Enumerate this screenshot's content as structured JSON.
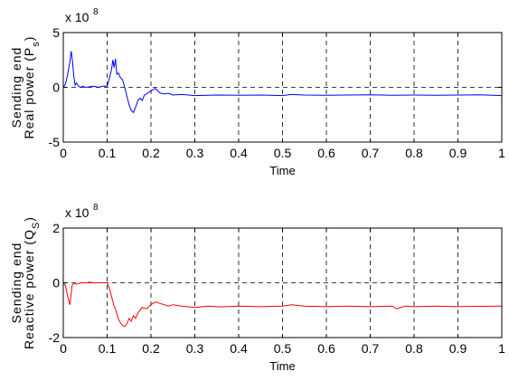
{
  "chart_data": [
    {
      "type": "line",
      "exponent_label": "x 10",
      "exponent_power": "8",
      "ylabel_line1": "Sending end",
      "ylabel_line2": "Real power (P",
      "ylabel_sub": "s",
      "ylabel_close": ")",
      "xlabel": "Time",
      "xlim": [
        0,
        1
      ],
      "ylim": [
        -5,
        5
      ],
      "x_ticks": [
        0,
        0.1,
        0.2,
        0.3,
        0.4,
        0.5,
        0.6,
        0.7,
        0.8,
        0.9,
        1
      ],
      "x_tick_labels": [
        "0",
        "0.1",
        "0.2",
        "0.3",
        "0.4",
        "0.5",
        "0.6",
        "0.7",
        "0.8",
        "0.9",
        "1"
      ],
      "y_ticks": [
        -5,
        0,
        5
      ],
      "y_tick_labels": [
        "-5",
        "0",
        "5"
      ],
      "grid": true,
      "series": [
        {
          "color": "#0000ff",
          "x": [
            0,
            0.005,
            0.01,
            0.015,
            0.018,
            0.021,
            0.024,
            0.027,
            0.03,
            0.035,
            0.04,
            0.045,
            0.05,
            0.06,
            0.07,
            0.08,
            0.09,
            0.1,
            0.105,
            0.11,
            0.113,
            0.116,
            0.119,
            0.122,
            0.126,
            0.13,
            0.135,
            0.14,
            0.145,
            0.15,
            0.155,
            0.16,
            0.165,
            0.17,
            0.175,
            0.18,
            0.185,
            0.19,
            0.2,
            0.21,
            0.22,
            0.23,
            0.24,
            0.25,
            0.27,
            0.3,
            0.35,
            0.4,
            0.45,
            0.5,
            0.52,
            0.55,
            0.6,
            0.65,
            0.7,
            0.75,
            0.8,
            0.85,
            0.9,
            0.95,
            1.0
          ],
          "y": [
            0,
            0.3,
            1.2,
            2.3,
            3.3,
            2.4,
            1.0,
            0.2,
            0.4,
            0.1,
            0.0,
            0.1,
            0.0,
            0.05,
            0.1,
            0.0,
            0.1,
            0.1,
            0.8,
            1.6,
            2.5,
            1.8,
            2.6,
            1.2,
            1.3,
            0.9,
            0.7,
            0.0,
            -0.8,
            -1.6,
            -2.1,
            -2.3,
            -1.8,
            -1.2,
            -1.0,
            -1.2,
            -0.7,
            -0.6,
            -0.3,
            -0.1,
            -0.5,
            -0.6,
            -0.55,
            -0.7,
            -0.65,
            -0.75,
            -0.7,
            -0.72,
            -0.7,
            -0.75,
            -0.65,
            -0.7,
            -0.72,
            -0.7,
            -0.68,
            -0.72,
            -0.7,
            -0.72,
            -0.7,
            -0.68,
            -0.75
          ]
        }
      ]
    },
    {
      "type": "line",
      "exponent_label": "x 10",
      "exponent_power": "8",
      "ylabel_line1": "Sending end",
      "ylabel_line2": "Reactive power (Q",
      "ylabel_sub": "S",
      "ylabel_close": ")",
      "xlabel": "Time",
      "xlim": [
        0,
        1
      ],
      "ylim": [
        -2,
        2
      ],
      "x_ticks": [
        0,
        0.1,
        0.2,
        0.3,
        0.4,
        0.5,
        0.6,
        0.7,
        0.8,
        0.9,
        1
      ],
      "x_tick_labels": [
        "0",
        "0.1",
        "0.2",
        "0.3",
        "0.4",
        "0.5",
        "0.6",
        "0.7",
        "0.8",
        "0.9",
        "1"
      ],
      "y_ticks": [
        -2,
        0,
        2
      ],
      "y_tick_labels": [
        "-2",
        "0",
        "2"
      ],
      "grid": true,
      "series": [
        {
          "color": "#ff0000",
          "x": [
            0,
            0.005,
            0.01,
            0.015,
            0.02,
            0.025,
            0.03,
            0.04,
            0.05,
            0.06,
            0.07,
            0.08,
            0.09,
            0.1,
            0.105,
            0.11,
            0.115,
            0.12,
            0.125,
            0.13,
            0.135,
            0.14,
            0.145,
            0.15,
            0.155,
            0.16,
            0.165,
            0.17,
            0.175,
            0.18,
            0.19,
            0.2,
            0.21,
            0.22,
            0.23,
            0.24,
            0.25,
            0.27,
            0.3,
            0.33,
            0.36,
            0.4,
            0.45,
            0.5,
            0.52,
            0.55,
            0.6,
            0.65,
            0.7,
            0.75,
            0.76,
            0.77,
            0.78,
            0.8,
            0.85,
            0.9,
            0.95,
            1.0
          ],
          "y": [
            0,
            -0.1,
            -0.5,
            -0.8,
            -0.1,
            0.0,
            -0.05,
            0.0,
            0.0,
            0.02,
            0.0,
            0.0,
            0.0,
            0.0,
            -0.2,
            -0.5,
            -0.8,
            -1.0,
            -1.3,
            -1.45,
            -1.55,
            -1.6,
            -1.5,
            -1.3,
            -1.4,
            -1.2,
            -1.3,
            -1.1,
            -1.0,
            -0.9,
            -0.95,
            -0.8,
            -0.7,
            -0.75,
            -0.8,
            -0.85,
            -0.8,
            -0.85,
            -0.9,
            -0.85,
            -0.88,
            -0.85,
            -0.87,
            -0.85,
            -0.8,
            -0.85,
            -0.87,
            -0.85,
            -0.87,
            -0.85,
            -0.95,
            -0.9,
            -0.85,
            -0.87,
            -0.85,
            -0.87,
            -0.86,
            -0.85
          ]
        }
      ]
    }
  ]
}
